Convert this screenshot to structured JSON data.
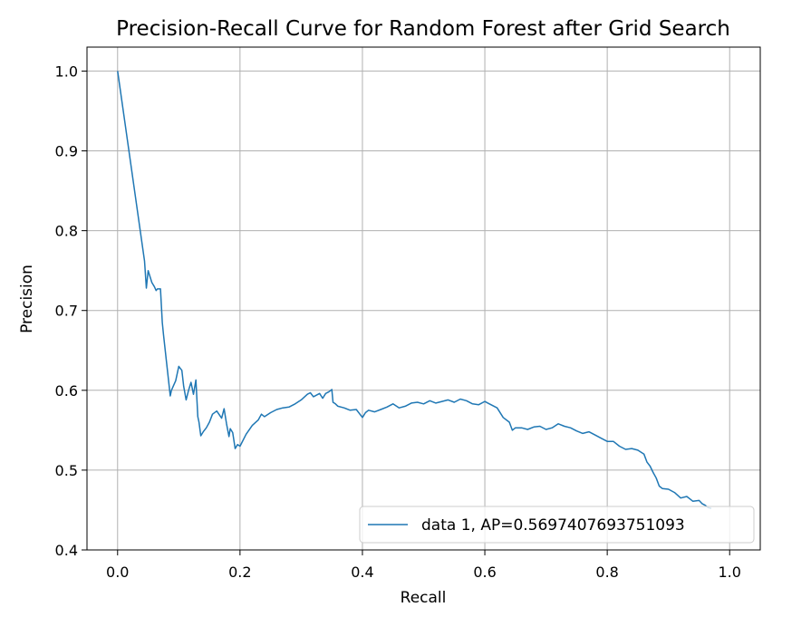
{
  "chart_data": {
    "type": "line",
    "title": "Precision-Recall Curve for Random Forest after Grid Search",
    "xlabel": "Recall",
    "ylabel": "Precision",
    "xlim": [
      -0.05,
      1.05
    ],
    "ylim": [
      0.4,
      1.03
    ],
    "xticks": [
      0.0,
      0.2,
      0.4,
      0.6,
      0.8,
      1.0
    ],
    "xtick_labels": [
      "0.0",
      "0.2",
      "0.4",
      "0.6",
      "0.8",
      "1.0"
    ],
    "yticks": [
      0.4,
      0.5,
      0.6,
      0.7,
      0.8,
      0.9,
      1.0
    ],
    "ytick_labels": [
      "0.4",
      "0.5",
      "0.6",
      "0.7",
      "0.8",
      "0.9",
      "1.0"
    ],
    "grid": true,
    "legend_position": "lower-right",
    "colors": {
      "series": "#1f77b4",
      "grid": "#b0b0b0"
    },
    "series": [
      {
        "name": "data 1, AP=0.5697407693751093",
        "x": [
          0.0,
          0.044,
          0.047,
          0.05,
          0.056,
          0.06,
          0.063,
          0.065,
          0.07,
          0.073,
          0.075,
          0.08,
          0.086,
          0.088,
          0.095,
          0.1,
          0.105,
          0.108,
          0.112,
          0.116,
          0.12,
          0.124,
          0.128,
          0.131,
          0.133,
          0.136,
          0.14,
          0.145,
          0.15,
          0.155,
          0.162,
          0.17,
          0.174,
          0.178,
          0.182,
          0.184,
          0.188,
          0.192,
          0.196,
          0.2,
          0.21,
          0.22,
          0.23,
          0.235,
          0.24,
          0.25,
          0.26,
          0.27,
          0.28,
          0.29,
          0.3,
          0.31,
          0.315,
          0.32,
          0.33,
          0.335,
          0.34,
          0.345,
          0.35,
          0.352,
          0.356,
          0.36,
          0.37,
          0.38,
          0.39,
          0.4,
          0.405,
          0.41,
          0.42,
          0.43,
          0.44,
          0.45,
          0.46,
          0.47,
          0.48,
          0.49,
          0.5,
          0.51,
          0.52,
          0.53,
          0.54,
          0.55,
          0.56,
          0.57,
          0.58,
          0.59,
          0.6,
          0.605,
          0.61,
          0.62,
          0.63,
          0.64,
          0.645,
          0.65,
          0.66,
          0.67,
          0.68,
          0.69,
          0.7,
          0.71,
          0.72,
          0.73,
          0.74,
          0.75,
          0.76,
          0.77,
          0.78,
          0.79,
          0.8,
          0.81,
          0.82,
          0.83,
          0.84,
          0.85,
          0.86,
          0.865,
          0.87,
          0.875,
          0.88,
          0.885,
          0.89,
          0.9,
          0.91,
          0.92,
          0.93,
          0.94,
          0.95,
          0.955,
          0.96,
          0.965,
          0.97
        ],
        "y": [
          1.0,
          0.762,
          0.728,
          0.75,
          0.735,
          0.73,
          0.725,
          0.727,
          0.727,
          0.685,
          0.67,
          0.635,
          0.593,
          0.6,
          0.612,
          0.63,
          0.625,
          0.605,
          0.588,
          0.6,
          0.61,
          0.595,
          0.613,
          0.567,
          0.56,
          0.543,
          0.548,
          0.553,
          0.56,
          0.57,
          0.574,
          0.565,
          0.577,
          0.558,
          0.542,
          0.552,
          0.547,
          0.527,
          0.532,
          0.53,
          0.545,
          0.556,
          0.563,
          0.57,
          0.567,
          0.572,
          0.576,
          0.578,
          0.579,
          0.583,
          0.588,
          0.595,
          0.597,
          0.592,
          0.596,
          0.59,
          0.596,
          0.598,
          0.601,
          0.585,
          0.583,
          0.58,
          0.578,
          0.575,
          0.576,
          0.566,
          0.572,
          0.575,
          0.573,
          0.576,
          0.579,
          0.583,
          0.578,
          0.58,
          0.584,
          0.585,
          0.583,
          0.587,
          0.584,
          0.586,
          0.588,
          0.585,
          0.589,
          0.587,
          0.583,
          0.582,
          0.586,
          0.584,
          0.582,
          0.578,
          0.566,
          0.56,
          0.55,
          0.553,
          0.553,
          0.551,
          0.554,
          0.555,
          0.551,
          0.553,
          0.558,
          0.555,
          0.553,
          0.549,
          0.546,
          0.548,
          0.544,
          0.54,
          0.536,
          0.536,
          0.53,
          0.526,
          0.527,
          0.525,
          0.52,
          0.51,
          0.505,
          0.497,
          0.49,
          0.48,
          0.477,
          0.476,
          0.472,
          0.465,
          0.467,
          0.461,
          0.462,
          0.458,
          0.456,
          0.453,
          0.452
        ]
      }
    ]
  }
}
